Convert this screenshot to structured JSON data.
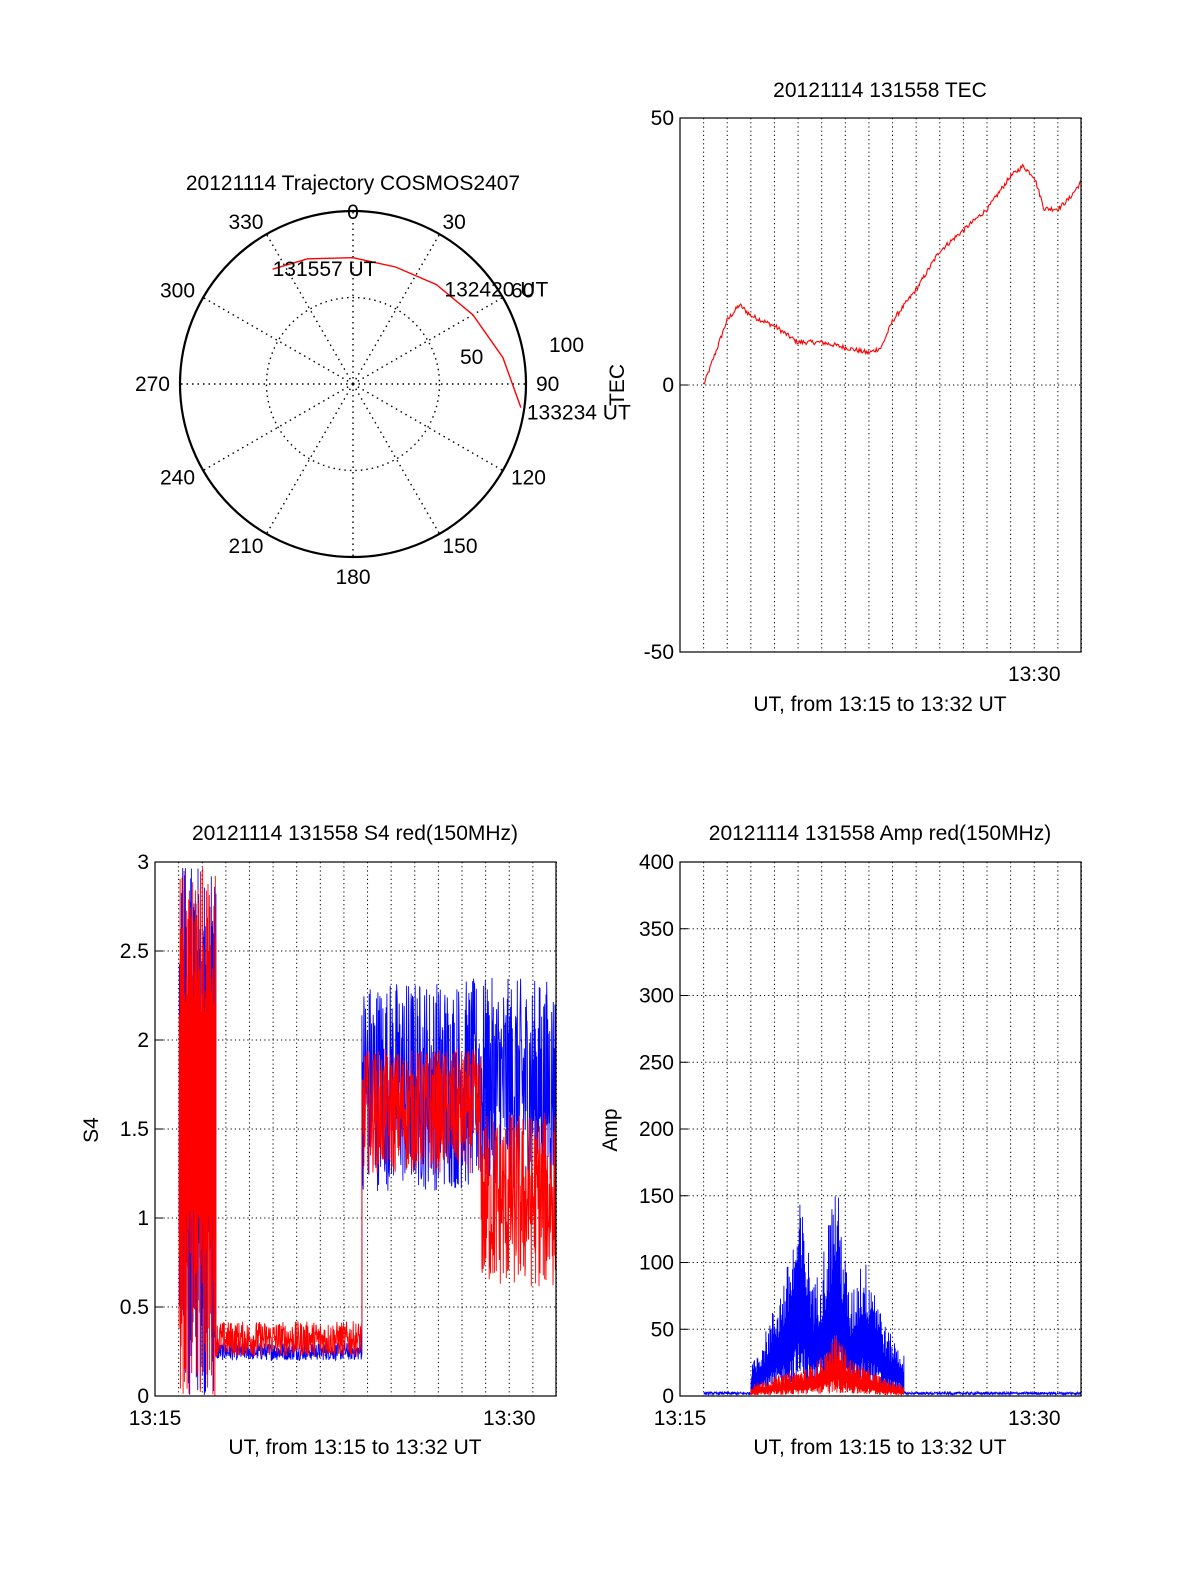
{
  "chart_data": [
    {
      "type": "polar",
      "title": "20121114 Trajectory COSMOS2407",
      "azimuth_labels": [
        "0",
        "30",
        "60",
        "90",
        "120",
        "150",
        "180",
        "210",
        "240",
        "270",
        "300",
        "330"
      ],
      "ring_labels": [
        "50",
        "100"
      ],
      "trajectory": {
        "color": "#ff0000",
        "points": [
          [
            -35,
            81
          ],
          [
            -20,
            77
          ],
          [
            0,
            73
          ],
          [
            20,
            72
          ],
          [
            40,
            75
          ],
          [
            60,
            80
          ],
          [
            80,
            88
          ],
          [
            98,
            98
          ]
        ]
      },
      "annotations": [
        {
          "text": "131557 UT",
          "point": [
            -35,
            81
          ]
        },
        {
          "text": "132420 UT",
          "point": [
            40,
            75
          ]
        },
        {
          "text": "133234 UT",
          "point": [
            98,
            98
          ]
        }
      ]
    },
    {
      "type": "line",
      "title": "20121114 131558 TEC",
      "ylabel": "TEC",
      "xlabel": "UT, from 13:15 to 13:32 UT",
      "xlim": [
        13.25,
        13.533
      ],
      "ylim": [
        -50,
        50
      ],
      "yticks": [
        "50",
        "0",
        "-50"
      ],
      "xticks": [
        {
          "label": "13:30",
          "x": 13.5
        }
      ],
      "series": [
        {
          "color": "#ff0000",
          "x": [
            13.2667,
            13.275,
            13.283,
            13.292,
            13.3,
            13.317,
            13.333,
            13.35,
            13.367,
            13.383,
            13.392,
            13.4,
            13.417,
            13.433,
            13.45,
            13.467,
            13.475,
            13.483,
            13.492,
            13.5,
            13.507,
            13.517,
            13.525,
            13.533
          ],
          "values": [
            0,
            6,
            12,
            15,
            13,
            11,
            8,
            8,
            7,
            6,
            7,
            12,
            18,
            25,
            29,
            33,
            36,
            39,
            41,
            39,
            33,
            33,
            35,
            38
          ]
        }
      ]
    },
    {
      "type": "line",
      "title": "20121114 131558 S4 red(150MHz)",
      "ylabel": "S4",
      "xlabel": "UT, from 13:15 to 13:32 UT",
      "xlim": [
        13.25,
        13.533
      ],
      "ylim": [
        0,
        3
      ],
      "yticks": [
        "0",
        "0.5",
        "1",
        "1.5",
        "2",
        "2.5",
        "3"
      ],
      "xticks": [
        {
          "label": "13:15",
          "x": 13.25
        },
        {
          "label": "13:30",
          "x": 13.5
        }
      ],
      "series": [
        {
          "color": "#0000ff",
          "segments": [
            {
              "x": [
                13.267,
                13.293
              ],
              "level": 1.6,
              "spread": 1.6,
              "kind": "burst"
            },
            {
              "x": [
                13.293,
                13.396
              ],
              "level": 0.25,
              "spread": 0.05,
              "kind": "noise"
            },
            {
              "x": [
                13.396,
                13.533
              ],
              "level": 1.75,
              "spread": 0.6,
              "kind": "noise"
            }
          ]
        },
        {
          "color": "#ff0000",
          "segments": [
            {
              "x": [
                13.267,
                13.293
              ],
              "level": 1.8,
              "spread": 1.4,
              "kind": "burst"
            },
            {
              "x": [
                13.293,
                13.396
              ],
              "level": 0.32,
              "spread": 0.1,
              "kind": "noise"
            },
            {
              "x": [
                13.396,
                13.48
              ],
              "level": 1.6,
              "spread": 0.35,
              "kind": "noise"
            },
            {
              "x": [
                13.48,
                13.533
              ],
              "level": 1.1,
              "spread": 0.5,
              "kind": "noise"
            }
          ]
        }
      ]
    },
    {
      "type": "line",
      "title": "20121114 131558 Amp red(150MHz)",
      "ylabel": "Amp",
      "xlabel": "UT, from 13:15 to 13:32 UT",
      "xlim": [
        13.25,
        13.533
      ],
      "ylim": [
        0,
        400
      ],
      "yticks": [
        "0",
        "50",
        "100",
        "150",
        "200",
        "250",
        "300",
        "350",
        "400"
      ],
      "xticks": [
        {
          "label": "13:15",
          "x": 13.25
        },
        {
          "label": "13:30",
          "x": 13.5
        }
      ],
      "series": [
        {
          "color": "#0000ff",
          "segments": [
            {
              "x": [
                13.267,
                13.3
              ],
              "level": 2,
              "spread": 1,
              "kind": "noise"
            },
            {
              "x": [
                13.3,
                13.408
              ],
              "kind": "envelope",
              "env_x": [
                13.3,
                13.31,
                13.325,
                13.335,
                13.345,
                13.352,
                13.36,
                13.37,
                13.378,
                13.386,
                13.395,
                13.408
              ],
              "env_y": [
                20,
                45,
                90,
                140,
                80,
                110,
                160,
                70,
                100,
                90,
                50,
                30
              ]
            },
            {
              "x": [
                13.408,
                13.533
              ],
              "level": 2,
              "spread": 1,
              "kind": "noise"
            }
          ]
        },
        {
          "color": "#ff0000",
          "segments": [
            {
              "x": [
                13.3,
                13.408
              ],
              "kind": "envelope",
              "env_x": [
                13.3,
                13.32,
                13.34,
                13.352,
                13.36,
                13.372,
                13.385,
                13.395,
                13.408
              ],
              "env_y": [
                8,
                15,
                20,
                30,
                45,
                25,
                18,
                12,
                8
              ]
            }
          ]
        }
      ]
    }
  ]
}
